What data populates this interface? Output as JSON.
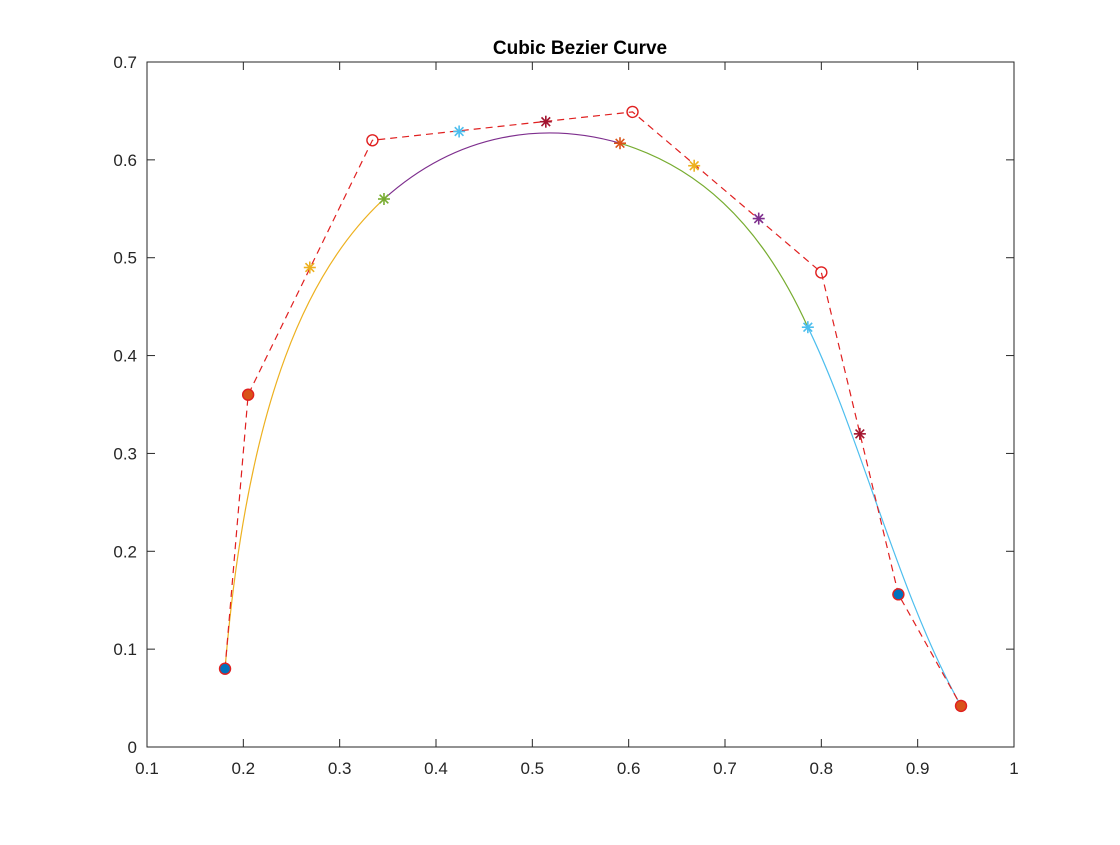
{
  "chart_data": {
    "type": "line",
    "title": "Cubic Bezier Curve",
    "xlabel": "",
    "ylabel": "",
    "xlim": [
      0.1,
      1
    ],
    "ylim": [
      0,
      0.7
    ],
    "xticks": [
      "0.1",
      "0.2",
      "0.3",
      "0.4",
      "0.5",
      "0.6",
      "0.7",
      "0.8",
      "0.9",
      "1"
    ],
    "yticks": [
      "0",
      "0.1",
      "0.2",
      "0.3",
      "0.4",
      "0.5",
      "0.6",
      "0.7"
    ],
    "grid": false,
    "box": true,
    "control_polygon": {
      "color": "#e02020",
      "line_style": "dashed",
      "marker": "circle",
      "points": [
        [
          0.181,
          0.08
        ],
        [
          0.205,
          0.36
        ],
        [
          0.334,
          0.62
        ],
        [
          0.604,
          0.649
        ],
        [
          0.8,
          0.485
        ],
        [
          0.88,
          0.156
        ],
        [
          0.945,
          0.042
        ]
      ]
    },
    "segments": [
      {
        "color": "#EDB120",
        "control_points": [
          [
            0.181,
            0.08
          ],
          [
            0.205,
            0.36
          ],
          [
            0.269,
            0.49
          ],
          [
            0.346,
            0.56
          ]
        ],
        "marker_color": "#EDB120"
      },
      {
        "color": "#7E2F8E",
        "control_points": [
          [
            0.346,
            0.56
          ],
          [
            0.424,
            0.629
          ],
          [
            0.514,
            0.639
          ],
          [
            0.591,
            0.617
          ]
        ],
        "marker_color": "#4DBEEE"
      },
      {
        "color": "#77AC30",
        "control_points": [
          [
            0.591,
            0.617
          ],
          [
            0.668,
            0.594
          ],
          [
            0.735,
            0.54
          ],
          [
            0.786,
            0.429
          ]
        ],
        "marker_color": "#D95319"
      },
      {
        "color": "#4DBEEE",
        "control_points": [
          [
            0.786,
            0.429
          ],
          [
            0.84,
            0.32
          ],
          [
            0.88,
            0.156
          ],
          [
            0.945,
            0.042
          ]
        ],
        "marker_color": "#A2142F"
      }
    ],
    "star_markers": [
      {
        "x": 0.181,
        "y": 0.08,
        "color": "#0072BD"
      },
      {
        "x": 0.269,
        "y": 0.49,
        "color": "#EDB120"
      },
      {
        "x": 0.346,
        "y": 0.56,
        "color": "#77AC30"
      },
      {
        "x": 0.424,
        "y": 0.629,
        "color": "#4DBEEE"
      },
      {
        "x": 0.514,
        "y": 0.639,
        "color": "#A2142F"
      },
      {
        "x": 0.591,
        "y": 0.617,
        "color": "#D95319"
      },
      {
        "x": 0.668,
        "y": 0.594,
        "color": "#EDB120"
      },
      {
        "x": 0.735,
        "y": 0.54,
        "color": "#7E2F8E"
      },
      {
        "x": 0.786,
        "y": 0.429,
        "color": "#4DBEEE"
      },
      {
        "x": 0.84,
        "y": 0.32,
        "color": "#A2142F"
      },
      {
        "x": 0.88,
        "y": 0.156,
        "color": "#0072BD"
      },
      {
        "x": 0.945,
        "y": 0.042,
        "color": "#D95319"
      }
    ],
    "filled_circle_markers": [
      {
        "x": 0.181,
        "y": 0.08,
        "color": "#0072BD"
      },
      {
        "x": 0.205,
        "y": 0.36,
        "color": "#D95319"
      },
      {
        "x": 0.88,
        "y": 0.156,
        "color": "#0072BD"
      },
      {
        "x": 0.945,
        "y": 0.042,
        "color": "#D95319"
      }
    ]
  }
}
